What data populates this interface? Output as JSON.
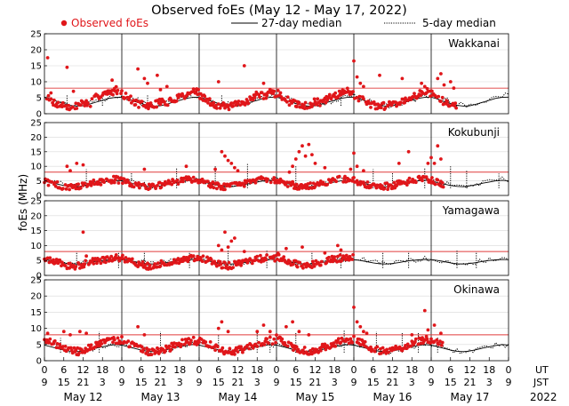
{
  "chart_data": {
    "type": "scatter",
    "title": "Observed foEs (May 12 - May 17, 2022)",
    "ylabel": "foEs (MHz)",
    "ylim": [
      0,
      25
    ],
    "yticks": [
      0,
      5,
      10,
      15,
      20,
      25
    ],
    "threshold_mhz": 8,
    "hours_range": [
      0,
      144
    ],
    "legend": {
      "observed": "Observed foEs",
      "median27": "27-day median",
      "median5": "5-day median",
      "colors": {
        "observed": "#e0161a",
        "median": "#000000",
        "threshold": "#e03b3b"
      }
    },
    "axis": {
      "ut_label": "UT",
      "jst_label": "JST",
      "year": "2022",
      "ut_ticks": [
        "0",
        "6",
        "12",
        "18",
        "0",
        "6",
        "12",
        "18",
        "0",
        "6",
        "12",
        "18",
        "0",
        "6",
        "12",
        "18",
        "0",
        "6",
        "12",
        "18",
        "0",
        "6",
        "12",
        "18",
        "0"
      ],
      "jst_ticks": [
        "9",
        "15",
        "21",
        "3",
        "9",
        "15",
        "21",
        "3",
        "9",
        "15",
        "21",
        "3",
        "9",
        "15",
        "21",
        "3",
        "9",
        "15",
        "21",
        "3",
        "9",
        "15",
        "21",
        "3",
        "9"
      ],
      "dates": [
        "May 12",
        "May 13",
        "May 14",
        "May 15",
        "May 16",
        "May 17"
      ]
    },
    "series": [
      {
        "name": "Wakkanai",
        "median27": [
          5.2,
          4.6,
          3.8,
          3.2,
          2.6,
          2.4,
          2.5,
          3.0,
          3.6,
          4.2,
          4.8,
          5.1,
          5.2
        ],
        "median5": [
          5.5,
          4.8,
          4.0,
          3.0,
          2.8,
          2.5,
          3.1,
          3.4,
          4.0,
          4.6,
          5.2,
          5.6,
          5.5
        ],
        "spikes": [
          [
            7,
            6.0
          ],
          [
            18,
            6.5
          ],
          [
            32,
            6.0
          ],
          [
            55,
            5.8
          ],
          [
            92,
            6.0
          ]
        ],
        "observed_daily": [
          [
            5.5,
            4.0,
            3.0,
            2.5,
            2.0,
            2.3,
            3.5,
            3.0,
            5.0,
            6.5,
            6.2,
            7.5,
            6.8
          ],
          [
            6.2,
            5.0,
            3.5,
            2.8,
            2.4,
            2.6,
            4.0,
            3.2,
            4.5,
            5.5,
            6.0,
            7.0,
            6.5
          ],
          [
            5.8,
            4.5,
            3.2,
            2.5,
            2.2,
            2.4,
            3.0,
            3.4,
            4.8,
            6.0,
            5.5,
            6.5,
            6.0
          ],
          [
            6.5,
            5.2,
            3.8,
            2.9,
            2.6,
            2.8,
            3.6,
            3.5,
            4.6,
            5.8,
            6.2,
            7.2,
            6.6
          ],
          [
            6.0,
            4.8,
            3.4,
            2.7,
            2.3,
            2.5,
            3.3,
            3.1,
            4.4,
            5.7,
            5.9,
            7.0,
            6.4
          ],
          [
            6.4,
            5.1,
            3.6,
            2.8,
            2.5,
            2.7,
            3.5,
            3.3,
            4.7,
            6.1,
            6.0,
            7.3,
            6.7
          ]
        ],
        "highs": [
          [
            1,
            17.5
          ],
          [
            2,
            6.5
          ],
          [
            7,
            14.5
          ],
          [
            9,
            7.0
          ],
          [
            21,
            10.5
          ],
          [
            29,
            14.0
          ],
          [
            31,
            11.0
          ],
          [
            32,
            9.5
          ],
          [
            35,
            12.0
          ],
          [
            36,
            7.5
          ],
          [
            38,
            8.5
          ],
          [
            54,
            10.0
          ],
          [
            62,
            15.0
          ],
          [
            68,
            9.5
          ],
          [
            96,
            16.5
          ],
          [
            97,
            11.5
          ],
          [
            98,
            9.5
          ],
          [
            99,
            8.5
          ],
          [
            104,
            12.0
          ],
          [
            111,
            11.0
          ],
          [
            117,
            9.5
          ],
          [
            118,
            8.5
          ],
          [
            122,
            11.0
          ],
          [
            123,
            12.5
          ],
          [
            124,
            9.0
          ],
          [
            126,
            10.0
          ],
          [
            127,
            8.0
          ]
        ],
        "obs_end": 128
      },
      {
        "name": "Kokubunji",
        "median27": [
          4.8,
          4.4,
          3.9,
          3.4,
          3.1,
          3.0,
          3.3,
          3.7,
          4.2,
          4.6,
          5.0,
          5.2,
          5.0
        ],
        "median5": [
          5.2,
          4.7,
          4.1,
          3.5,
          3.2,
          3.1,
          3.6,
          4.0,
          4.6,
          5.1,
          5.4,
          5.6,
          5.3
        ],
        "spikes": [
          [
            13,
            9.0
          ],
          [
            27,
            8.0
          ],
          [
            41,
            9.5
          ],
          [
            53,
            10.0
          ],
          [
            63,
            11.0
          ],
          [
            78,
            10.0
          ],
          [
            102,
            9.0
          ],
          [
            108,
            8.0
          ],
          [
            118,
            9.5
          ],
          [
            126,
            10.0
          ],
          [
            131,
            8.5
          ],
          [
            141,
            7.5
          ]
        ],
        "observed_daily": [
          [
            5.0,
            4.2,
            3.6,
            3.0,
            2.8,
            3.0,
            3.5,
            3.8,
            4.4,
            4.8,
            5.2,
            5.5,
            5.0
          ],
          [
            5.3,
            4.4,
            3.8,
            3.2,
            3.0,
            3.1,
            3.4,
            3.9,
            4.5,
            5.0,
            5.3,
            5.4,
            5.1
          ],
          [
            5.1,
            4.3,
            3.7,
            3.1,
            2.9,
            3.0,
            3.6,
            4.0,
            4.6,
            5.1,
            5.4,
            5.6,
            5.2
          ],
          [
            5.4,
            4.5,
            3.9,
            3.3,
            3.0,
            3.2,
            3.7,
            4.1,
            4.7,
            5.2,
            5.5,
            5.7,
            5.3
          ],
          [
            5.2,
            4.4,
            3.8,
            3.2,
            2.9,
            3.1,
            3.5,
            4.0,
            4.6,
            5.0,
            5.4,
            5.6,
            5.2
          ],
          [
            5.3,
            4.5,
            3.9,
            3.3,
            3.0,
            3.1,
            3.6,
            4.1,
            4.7,
            5.1,
            5.5,
            5.7,
            5.3
          ]
        ],
        "highs": [
          [
            7,
            10.0
          ],
          [
            8,
            8.5
          ],
          [
            10,
            11.0
          ],
          [
            12,
            10.5
          ],
          [
            31,
            9.0
          ],
          [
            44,
            10.0
          ],
          [
            53,
            9.0
          ],
          [
            55,
            15.0
          ],
          [
            56,
            13.5
          ],
          [
            57,
            12.0
          ],
          [
            58,
            11.0
          ],
          [
            59,
            9.5
          ],
          [
            60,
            8.5
          ],
          [
            76,
            8.0
          ],
          [
            77,
            10.0
          ],
          [
            78,
            12.5
          ],
          [
            79,
            15.0
          ],
          [
            80,
            17.0
          ],
          [
            81,
            13.5
          ],
          [
            82,
            17.5
          ],
          [
            83,
            14.0
          ],
          [
            84,
            11.0
          ],
          [
            87,
            9.5
          ],
          [
            95,
            9.0
          ],
          [
            96,
            14.5
          ],
          [
            97,
            10.0
          ],
          [
            99,
            8.5
          ],
          [
            110,
            11.0
          ],
          [
            113,
            15.0
          ],
          [
            119,
            11.0
          ],
          [
            120,
            13.0
          ],
          [
            121,
            11.0
          ],
          [
            122,
            17.0
          ],
          [
            123,
            12.5
          ]
        ],
        "obs_end": 124
      },
      {
        "name": "Yamagawa",
        "median27": [
          5.3,
          5.0,
          4.6,
          4.2,
          3.9,
          3.8,
          4.0,
          4.3,
          4.7,
          5.0,
          5.2,
          5.4,
          5.3
        ],
        "median5": [
          5.5,
          5.1,
          4.7,
          4.3,
          4.0,
          3.9,
          4.2,
          4.5,
          4.9,
          5.2,
          5.5,
          5.6,
          5.5
        ],
        "spikes": [
          [
            10,
            8.0
          ],
          [
            23,
            7.5
          ],
          [
            31,
            8.0
          ],
          [
            45,
            8.0
          ],
          [
            57,
            8.5
          ],
          [
            69,
            8.5
          ],
          [
            83,
            8.0
          ],
          [
            92,
            8.5
          ],
          [
            105,
            7.5
          ],
          [
            113,
            8.0
          ],
          [
            128,
            8.5
          ],
          [
            134,
            8.0
          ]
        ],
        "observed_daily": [
          [
            6.0,
            5.2,
            4.4,
            3.6,
            3.2,
            3.1,
            3.8,
            4.3,
            4.9,
            5.3,
            5.6,
            5.8,
            5.7
          ],
          [
            5.8,
            5.0,
            4.2,
            3.5,
            3.1,
            3.0,
            3.7,
            4.2,
            4.8,
            5.2,
            5.5,
            5.6,
            5.6
          ],
          [
            6.2,
            5.3,
            4.5,
            3.7,
            3.3,
            3.2,
            3.9,
            4.4,
            5.0,
            5.4,
            5.7,
            5.9,
            5.8
          ],
          [
            6.5,
            5.5,
            4.6,
            3.8,
            3.4,
            3.3,
            4.0,
            4.5,
            5.1,
            5.5,
            5.8,
            6.0,
            5.9
          ],
          [
            6.0,
            5.2,
            4.4,
            3.6,
            3.2,
            3.1,
            3.8,
            4.3,
            4.9,
            5.3,
            5.6,
            5.8,
            5.7
          ],
          [
            5.9,
            5.1,
            4.3,
            3.5,
            3.1,
            3.0,
            3.7,
            4.2,
            4.8,
            5.2,
            5.5,
            5.7,
            5.6
          ]
        ],
        "highs": [
          [
            12,
            14.5
          ],
          [
            13,
            6.5
          ],
          [
            54,
            10.0
          ],
          [
            55,
            8.5
          ],
          [
            56,
            14.5
          ],
          [
            57,
            9.5
          ],
          [
            58,
            11.5
          ],
          [
            59,
            12.5
          ],
          [
            62,
            8.0
          ],
          [
            75,
            9.0
          ],
          [
            80,
            9.5
          ],
          [
            87,
            7.5
          ],
          [
            91,
            10.0
          ],
          [
            92,
            8.5
          ]
        ],
        "obs_end": 96
      },
      {
        "name": "Okinawa",
        "median27": [
          4.8,
          4.3,
          3.8,
          3.3,
          2.9,
          2.8,
          3.0,
          3.4,
          3.9,
          4.3,
          4.7,
          5.0,
          4.8
        ],
        "median5": [
          5.0,
          4.5,
          3.9,
          3.4,
          3.0,
          2.9,
          3.2,
          3.6,
          4.1,
          4.6,
          4.9,
          5.1,
          5.0
        ],
        "spikes": [
          [
            5,
            7.0
          ],
          [
            17,
            9.0
          ],
          [
            36,
            9.0
          ],
          [
            54,
            8.0
          ],
          [
            66,
            8.5
          ],
          [
            70,
            8.0
          ],
          [
            78,
            8.5
          ],
          [
            93,
            9.5
          ],
          [
            103,
            9.0
          ],
          [
            111,
            8.5
          ],
          [
            116,
            8.5
          ],
          [
            122,
            7.5
          ]
        ],
        "observed_daily": [
          [
            7.0,
            5.8,
            4.8,
            3.6,
            3.0,
            2.8,
            3.2,
            3.8,
            4.6,
            5.3,
            5.9,
            6.5,
            6.0
          ],
          [
            6.5,
            5.5,
            4.5,
            3.5,
            2.9,
            2.7,
            3.1,
            3.7,
            4.5,
            5.2,
            5.8,
            6.3,
            5.9
          ],
          [
            6.8,
            5.7,
            4.7,
            3.6,
            3.0,
            2.8,
            3.2,
            3.8,
            4.6,
            5.3,
            5.9,
            6.4,
            6.0
          ],
          [
            7.2,
            6.0,
            4.9,
            3.7,
            3.1,
            2.9,
            3.3,
            3.9,
            4.7,
            5.4,
            6.0,
            6.6,
            6.1
          ],
          [
            6.9,
            5.8,
            4.8,
            3.6,
            3.0,
            2.8,
            3.2,
            3.8,
            4.6,
            5.3,
            5.9,
            6.5,
            6.0
          ],
          [
            6.6,
            5.6,
            4.6,
            3.5,
            2.9,
            2.7,
            3.1,
            3.7,
            4.5,
            5.2,
            5.8,
            6.3,
            5.9
          ]
        ],
        "highs": [
          [
            1,
            8.5
          ],
          [
            6,
            9.0
          ],
          [
            8,
            8.0
          ],
          [
            11,
            9.0
          ],
          [
            13,
            8.5
          ],
          [
            29,
            10.5
          ],
          [
            31,
            8.0
          ],
          [
            54,
            10.0
          ],
          [
            55,
            12.0
          ],
          [
            57,
            9.0
          ],
          [
            66,
            9.0
          ],
          [
            68,
            11.0
          ],
          [
            70,
            9.0
          ],
          [
            75,
            10.5
          ],
          [
            77,
            12.0
          ],
          [
            79,
            9.0
          ],
          [
            82,
            8.0
          ],
          [
            96,
            16.5
          ],
          [
            97,
            12.0
          ],
          [
            98,
            10.5
          ],
          [
            99,
            9.0
          ],
          [
            100,
            8.5
          ],
          [
            114,
            8.0
          ],
          [
            118,
            15.5
          ],
          [
            119,
            9.5
          ],
          [
            121,
            11.0
          ],
          [
            123,
            8.5
          ]
        ],
        "obs_end": 124
      }
    ]
  }
}
